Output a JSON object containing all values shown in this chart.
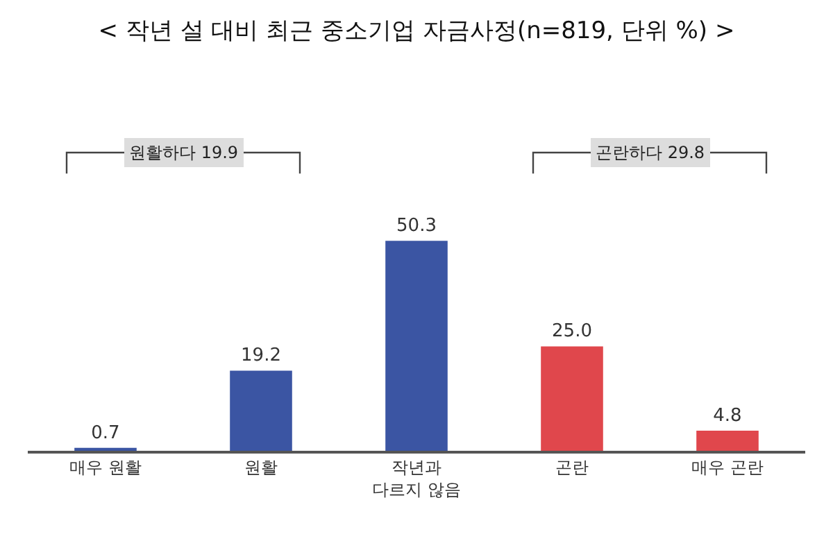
{
  "chart_data": {
    "type": "bar",
    "title": "< 작년 설 대비 최근 중소기업 자금사정(n=819, 단위 %) >",
    "categories": [
      "매우 원활",
      "원활",
      "작년과\n다르지 않음",
      "곤란",
      "매우 곤란"
    ],
    "values": [
      0.7,
      19.2,
      50.3,
      25.0,
      4.8
    ],
    "colors": [
      "#3b55a3",
      "#3b55a3",
      "#3b55a3",
      "#e0474c",
      "#e0474c"
    ],
    "value_labels": [
      "0.7",
      "19.2",
      "50.3",
      "25.0",
      "4.8"
    ],
    "annotations": [
      "원활하다 19.9",
      "곤란하다 29.8"
    ]
  }
}
